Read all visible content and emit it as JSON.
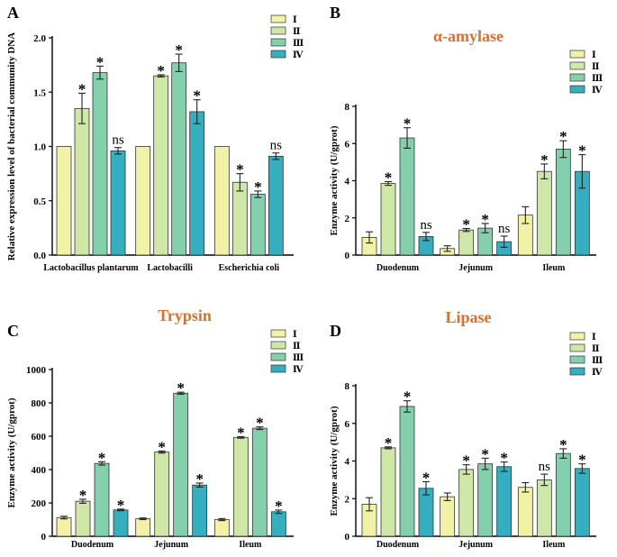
{
  "figure": {
    "colors": {
      "I": "#f2f2a6",
      "II": "#cfe7a7",
      "III": "#84cfac",
      "IV": "#35aec0",
      "title": "#d8702f"
    }
  },
  "chart_data": [
    {
      "panel_label": "A",
      "type": "bar",
      "title": "",
      "ylabel": "Relative expression level of bacterial community DNA",
      "xlabel": "",
      "ylim": [
        0,
        2.0
      ],
      "yticks": [
        "0.0",
        "0.5",
        "1.0",
        "1.5",
        "2.0"
      ],
      "categories": [
        "Lactobacillus plantarum",
        "Lactobacilli",
        "Escherichia coli"
      ],
      "legend": [
        "Ⅰ",
        "Ⅱ",
        "Ⅲ",
        "Ⅳ"
      ],
      "series": [
        {
          "name": "Ⅰ",
          "values": [
            1.0,
            1.0,
            1.0
          ],
          "errors": [
            0,
            0,
            0
          ],
          "labels": [
            "",
            "",
            ""
          ]
        },
        {
          "name": "Ⅱ",
          "values": [
            1.35,
            1.65,
            0.67
          ],
          "errors": [
            0.14,
            0.01,
            0.08
          ],
          "labels": [
            "*",
            "*",
            "*"
          ]
        },
        {
          "name": "Ⅲ",
          "values": [
            1.68,
            1.77,
            0.56
          ],
          "errors": [
            0.06,
            0.08,
            0.03
          ],
          "labels": [
            "*",
            "*",
            "*"
          ]
        },
        {
          "name": "Ⅳ",
          "values": [
            0.96,
            1.32,
            0.91
          ],
          "errors": [
            0.03,
            0.11,
            0.03
          ],
          "labels": [
            "ns",
            "*",
            "ns"
          ]
        }
      ]
    },
    {
      "panel_label": "B",
      "type": "bar",
      "title": "α-amylase",
      "ylabel": "Enzyme activity (U/gprot)",
      "xlabel": "",
      "ylim": [
        0,
        8
      ],
      "yticks": [
        "0",
        "2",
        "4",
        "6",
        "8"
      ],
      "categories": [
        "Duodenum",
        "Jejunum",
        "Ileum"
      ],
      "legend": [
        "Ⅰ",
        "Ⅱ",
        "Ⅲ",
        "Ⅳ"
      ],
      "series": [
        {
          "name": "Ⅰ",
          "values": [
            0.95,
            0.35,
            2.15
          ],
          "errors": [
            0.3,
            0.15,
            0.45
          ],
          "labels": [
            "",
            "",
            ""
          ]
        },
        {
          "name": "Ⅱ",
          "values": [
            3.85,
            1.35,
            4.5
          ],
          "errors": [
            0.1,
            0.08,
            0.4
          ],
          "labels": [
            "*",
            "*",
            "*"
          ]
        },
        {
          "name": "Ⅲ",
          "values": [
            6.3,
            1.45,
            5.7
          ],
          "errors": [
            0.55,
            0.25,
            0.45
          ],
          "labels": [
            "*",
            "*",
            "*"
          ]
        },
        {
          "name": "Ⅳ",
          "values": [
            1.0,
            0.72,
            4.5
          ],
          "errors": [
            0.22,
            0.3,
            0.9
          ],
          "labels": [
            "ns",
            "ns",
            "*"
          ]
        }
      ]
    },
    {
      "panel_label": "C",
      "type": "bar",
      "title": "Trypsin",
      "ylabel": "Enzyme activity (U/gprot)",
      "xlabel": "",
      "ylim": [
        0,
        1000
      ],
      "yticks": [
        "0",
        "200",
        "400",
        "600",
        "800",
        "1000"
      ],
      "categories": [
        "Duodenum",
        "Jejunum",
        "Ileum"
      ],
      "legend": [
        "Ⅰ",
        "Ⅱ",
        "Ⅲ",
        "Ⅳ"
      ],
      "series": [
        {
          "name": "Ⅰ",
          "values": [
            112,
            105,
            100
          ],
          "errors": [
            8,
            5,
            6
          ],
          "labels": [
            "",
            "",
            ""
          ]
        },
        {
          "name": "Ⅱ",
          "values": [
            210,
            505,
            593
          ],
          "errors": [
            12,
            6,
            5
          ],
          "labels": [
            "*",
            "*",
            "*"
          ]
        },
        {
          "name": "Ⅲ",
          "values": [
            437,
            858,
            648
          ],
          "errors": [
            10,
            6,
            8
          ],
          "labels": [
            "*",
            "*",
            "*"
          ]
        },
        {
          "name": "Ⅳ",
          "values": [
            158,
            307,
            147
          ],
          "errors": [
            5,
            12,
            10
          ],
          "labels": [
            "*",
            "*",
            "*"
          ]
        }
      ]
    },
    {
      "panel_label": "D",
      "type": "bar",
      "title": "Lipase",
      "ylabel": "Enzyme activity (U/gprot)",
      "xlabel": "",
      "ylim": [
        0,
        8
      ],
      "yticks": [
        "0",
        "2",
        "4",
        "6",
        "8"
      ],
      "categories": [
        "Duodenum",
        "Jejunum",
        "Ileum"
      ],
      "legend": [
        "Ⅰ",
        "Ⅱ",
        "Ⅲ",
        "Ⅳ"
      ],
      "series": [
        {
          "name": "Ⅰ",
          "values": [
            1.7,
            2.1,
            2.6
          ],
          "errors": [
            0.35,
            0.2,
            0.25
          ],
          "labels": [
            "",
            "",
            ""
          ]
        },
        {
          "name": "Ⅱ",
          "values": [
            4.7,
            3.55,
            3.0
          ],
          "errors": [
            0.05,
            0.25,
            0.3
          ],
          "labels": [
            "*",
            "*",
            "ns"
          ]
        },
        {
          "name": "Ⅲ",
          "values": [
            6.9,
            3.85,
            4.4
          ],
          "errors": [
            0.3,
            0.3,
            0.25
          ],
          "labels": [
            "*",
            "*",
            "*"
          ]
        },
        {
          "name": "Ⅳ",
          "values": [
            2.55,
            3.7,
            3.6
          ],
          "errors": [
            0.35,
            0.25,
            0.25
          ],
          "labels": [
            "*",
            "*",
            "*"
          ]
        }
      ]
    }
  ]
}
